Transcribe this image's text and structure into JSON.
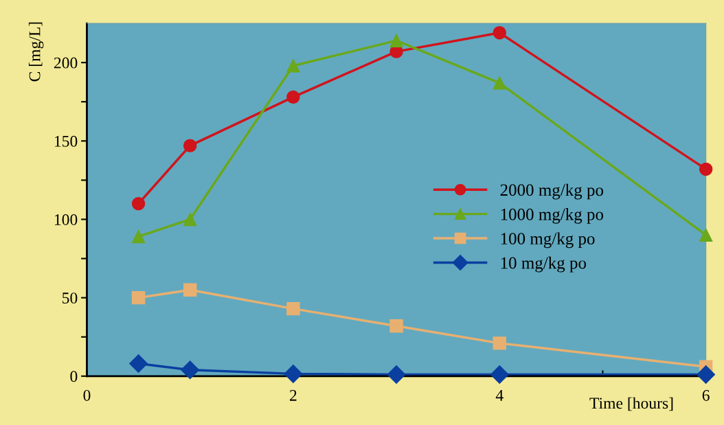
{
  "chart_data": {
    "type": "line",
    "xlabel": "Time [hours]",
    "ylabel": "C [mg/L]",
    "x": [
      0.5,
      1,
      2,
      3,
      4,
      6
    ],
    "series": [
      {
        "name": "2000 mg/kg po",
        "color": "#d0141c",
        "marker": "circle",
        "values": [
          110,
          147,
          178,
          207,
          219,
          132
        ]
      },
      {
        "name": "1000 mg/kg po",
        "color": "#6aa81c",
        "marker": "triangle",
        "values": [
          89,
          100,
          198,
          214,
          187,
          90
        ]
      },
      {
        "name": "100 mg/kg po",
        "color": "#e8b070",
        "marker": "square",
        "values": [
          50,
          55,
          43,
          32,
          21,
          6
        ]
      },
      {
        "name": "10 mg/kg po",
        "color": "#0a3fa0",
        "marker": "diamond",
        "values": [
          8,
          4,
          1.5,
          1,
          1,
          1
        ]
      }
    ],
    "xlim": [
      0,
      6
    ],
    "xticks": [
      0,
      {
        "value": 1,
        "label": null
      },
      2,
      {
        "value": 3,
        "label": null
      },
      4,
      {
        "value": 5,
        "label": null
      },
      6
    ],
    "ylim": [
      0,
      225
    ],
    "yticks": [
      0,
      {
        "value": 25,
        "label": null
      },
      50,
      {
        "value": 75,
        "label": null
      },
      100,
      {
        "value": 125,
        "label": null
      },
      150,
      {
        "value": 175,
        "label": null
      },
      200
    ],
    "grid": false,
    "legend": "right",
    "line_style": "solid"
  }
}
